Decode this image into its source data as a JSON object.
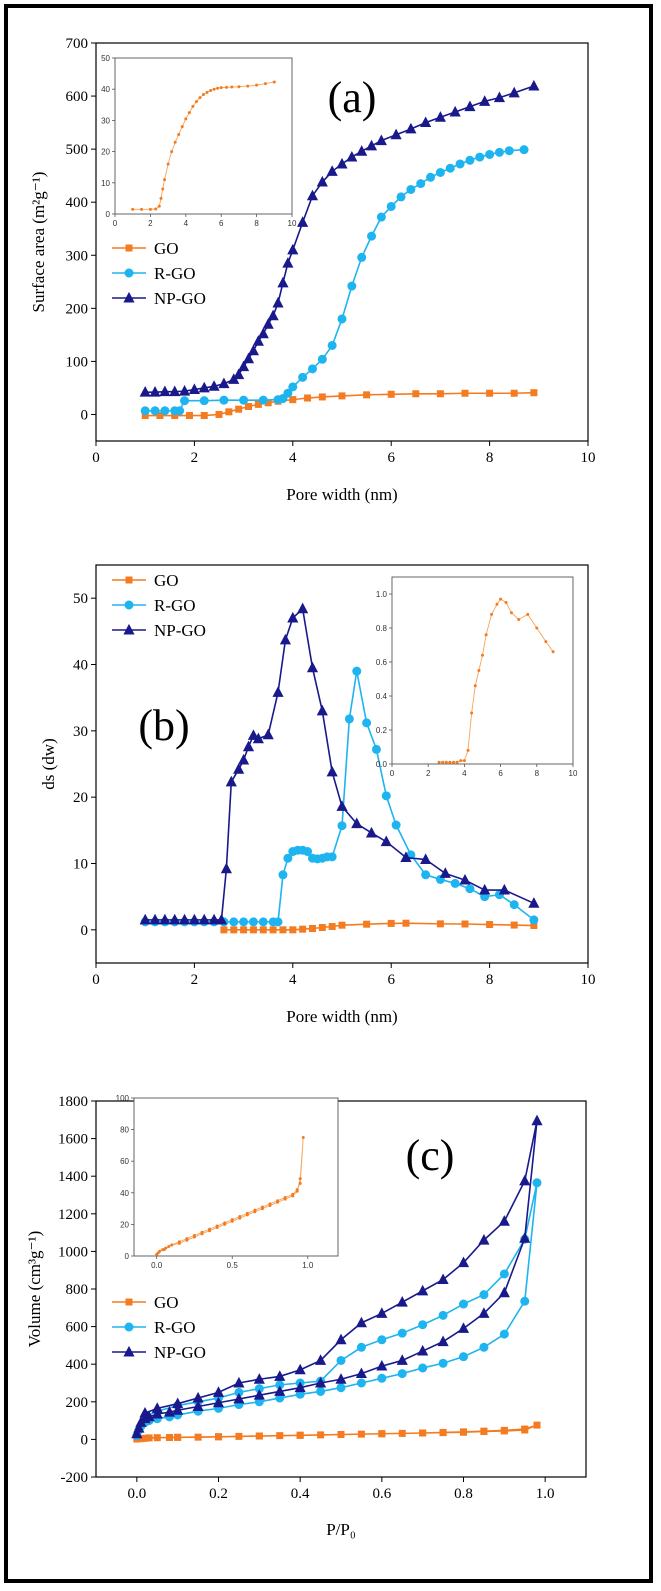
{
  "chart_data": [
    {
      "type": "line",
      "panel_label": "(a)",
      "xlabel": "Pore width (nm)",
      "ylabel": "Surface area (m²g⁻¹)",
      "xlim": [
        0,
        10
      ],
      "ylim": [
        -50,
        700
      ],
      "xticks": [
        0,
        2,
        4,
        6,
        8,
        10
      ],
      "yticks": [
        0,
        100,
        200,
        300,
        400,
        500,
        600,
        700
      ],
      "legend_position": "middle-left",
      "series": [
        {
          "name": "GO",
          "color": "#f47b20",
          "marker": "square",
          "x": [
            1.0,
            1.3,
            1.6,
            1.9,
            2.2,
            2.5,
            2.7,
            2.9,
            3.1,
            3.3,
            3.5,
            3.7,
            4.0,
            4.3,
            4.6,
            5.0,
            5.5,
            6.0,
            6.5,
            7.0,
            7.5,
            8.0,
            8.5,
            8.9
          ],
          "y": [
            -2,
            -2,
            -2,
            -2,
            -2,
            0,
            5,
            10,
            15,
            19,
            22,
            25,
            28,
            31,
            33,
            35,
            37,
            38,
            39,
            39,
            40,
            40,
            40,
            41
          ]
        },
        {
          "name": "R-GO",
          "color": "#1eb4f0",
          "marker": "circle",
          "x": [
            1.0,
            1.2,
            1.4,
            1.6,
            1.7,
            1.8,
            2.2,
            2.6,
            3.0,
            3.4,
            3.7,
            3.8,
            3.9,
            4.0,
            4.2,
            4.4,
            4.6,
            4.8,
            5.0,
            5.2,
            5.4,
            5.6,
            5.8,
            6.0,
            6.2,
            6.4,
            6.6,
            6.8,
            7.0,
            7.2,
            7.4,
            7.6,
            7.8,
            8.0,
            8.2,
            8.4,
            8.7
          ],
          "y": [
            7,
            7,
            7,
            7,
            7,
            26,
            26,
            27,
            27,
            27,
            28,
            30,
            40,
            52,
            70,
            86,
            104,
            130,
            180,
            242,
            296,
            336,
            372,
            392,
            410,
            424,
            435,
            447,
            456,
            464,
            472,
            479,
            485,
            490,
            494,
            497,
            499
          ]
        },
        {
          "name": "NP-GO",
          "color": "#19198c",
          "marker": "triangle",
          "x": [
            1.0,
            1.2,
            1.4,
            1.6,
            1.8,
            2.0,
            2.2,
            2.4,
            2.6,
            2.8,
            2.9,
            3.0,
            3.1,
            3.2,
            3.3,
            3.4,
            3.5,
            3.6,
            3.7,
            3.8,
            3.9,
            4.0,
            4.2,
            4.4,
            4.6,
            4.8,
            5.0,
            5.2,
            5.4,
            5.6,
            5.8,
            6.1,
            6.4,
            6.7,
            7.0,
            7.3,
            7.6,
            7.9,
            8.2,
            8.5,
            8.9
          ],
          "y": [
            42,
            42,
            43,
            43,
            44,
            47,
            50,
            53,
            58,
            66,
            75,
            90,
            105,
            120,
            138,
            152,
            170,
            186,
            210,
            248,
            285,
            310,
            362,
            412,
            438,
            458,
            472,
            485,
            496,
            506,
            516,
            527,
            538,
            550,
            560,
            570,
            580,
            590,
            597,
            606,
            619
          ]
        }
      ],
      "inset": {
        "series": "GO",
        "xlim": [
          0,
          10
        ],
        "ylim": [
          0,
          50
        ],
        "xticks": [
          0,
          2,
          4,
          6,
          8,
          10
        ],
        "yticks": [
          0,
          10,
          20,
          30,
          40,
          50
        ],
        "x": [
          1.0,
          1.5,
          2.0,
          2.3,
          2.5,
          2.6,
          2.7,
          2.8,
          3.0,
          3.2,
          3.4,
          3.6,
          3.8,
          4.0,
          4.2,
          4.4,
          4.6,
          4.8,
          5.0,
          5.2,
          5.4,
          5.6,
          5.8,
          6.0,
          6.3,
          6.6,
          7.0,
          7.5,
          8.0,
          8.5,
          9.0
        ],
        "y": [
          1.5,
          1.5,
          1.5,
          1.6,
          2.5,
          5,
          8,
          11,
          16,
          20,
          23,
          25.5,
          28,
          30.5,
          32.5,
          34.5,
          36,
          37.3,
          38.3,
          39,
          39.6,
          40,
          40.3,
          40.5,
          40.6,
          40.7,
          40.8,
          41,
          41.3,
          41.8,
          42.3
        ]
      }
    },
    {
      "type": "line",
      "panel_label": "(b)",
      "xlabel": "Pore width (nm)",
      "ylabel": "ds (dw)",
      "xlim": [
        0,
        10
      ],
      "ylim": [
        -5,
        55
      ],
      "xticks": [
        0,
        2,
        4,
        6,
        8,
        10
      ],
      "yticks": [
        0,
        10,
        20,
        30,
        40,
        50
      ],
      "legend_position": "top-left",
      "series": [
        {
          "name": "GO",
          "color": "#f47b20",
          "marker": "square",
          "x": [
            2.6,
            2.8,
            3.0,
            3.2,
            3.4,
            3.6,
            3.8,
            4.0,
            4.2,
            4.4,
            4.6,
            4.8,
            5.0,
            5.5,
            6.0,
            6.3,
            7.0,
            7.5,
            8.0,
            8.5,
            8.9
          ],
          "y": [
            0,
            0,
            0,
            0,
            0,
            0,
            0,
            0,
            0.1,
            0.2,
            0.35,
            0.5,
            0.7,
            0.85,
            0.97,
            1.0,
            0.9,
            0.88,
            0.8,
            0.72,
            0.65
          ]
        },
        {
          "name": "R-GO",
          "color": "#1eb4f0",
          "marker": "circle",
          "x": [
            1.0,
            1.2,
            1.4,
            1.6,
            1.8,
            2.0,
            2.2,
            2.4,
            2.6,
            2.8,
            3.0,
            3.2,
            3.4,
            3.6,
            3.7,
            3.8,
            3.9,
            4.0,
            4.1,
            4.2,
            4.3,
            4.4,
            4.5,
            4.6,
            4.7,
            4.8,
            5.0,
            5.15,
            5.3,
            5.5,
            5.7,
            5.9,
            6.1,
            6.4,
            6.7,
            7.0,
            7.3,
            7.6,
            7.9,
            8.2,
            8.5,
            8.9
          ],
          "y": [
            1.2,
            1.2,
            1.2,
            1.2,
            1.2,
            1.2,
            1.2,
            1.2,
            1.2,
            1.2,
            1.2,
            1.2,
            1.2,
            1.2,
            1.2,
            8.3,
            10.8,
            11.8,
            12,
            12,
            11.8,
            10.8,
            10.7,
            10.8,
            11,
            11,
            15.7,
            31.8,
            39,
            31.2,
            27.2,
            20.2,
            15.8,
            11.3,
            8.3,
            7.6,
            7.0,
            6.2,
            5.0,
            5.3,
            3.8,
            1.5
          ]
        },
        {
          "name": "NP-GO",
          "color": "#19198c",
          "marker": "triangle",
          "x": [
            1.0,
            1.2,
            1.4,
            1.6,
            1.8,
            2.0,
            2.2,
            2.4,
            2.55,
            2.65,
            2.75,
            2.9,
            3.0,
            3.1,
            3.2,
            3.3,
            3.5,
            3.7,
            3.85,
            4.0,
            4.2,
            4.4,
            4.6,
            4.8,
            5.0,
            5.3,
            5.6,
            5.9,
            6.3,
            6.7,
            7.1,
            7.5,
            7.9,
            8.3,
            8.9
          ],
          "y": [
            1.5,
            1.5,
            1.5,
            1.5,
            1.5,
            1.5,
            1.5,
            1.5,
            1.5,
            9.2,
            22.3,
            24.2,
            25.6,
            27.6,
            29.3,
            28.8,
            29.4,
            35.8,
            43.7,
            47,
            48.4,
            39.5,
            33,
            23.8,
            18.6,
            16,
            14.6,
            13.3,
            10.9,
            10.6,
            8.5,
            7.5,
            6.0,
            6.0,
            4.0
          ]
        }
      ],
      "inset": {
        "series": "GO",
        "xlim": [
          0,
          10
        ],
        "ylim": [
          0,
          1.1
        ],
        "xticks": [
          0,
          2,
          4,
          6,
          8,
          10
        ],
        "yticks": [
          0.0,
          0.2,
          0.4,
          0.6,
          0.8,
          1.0
        ],
        "tick_labels_y": [
          "0.0",
          "0.2",
          "0.4",
          "0.6",
          "0.8",
          "1.0"
        ],
        "x": [
          2.6,
          2.8,
          3.0,
          3.2,
          3.4,
          3.6,
          3.8,
          4.0,
          4.2,
          4.4,
          4.6,
          4.8,
          5.0,
          5.2,
          5.5,
          5.8,
          6.0,
          6.3,
          6.6,
          7.0,
          7.5,
          8.0,
          8.5,
          8.9
        ],
        "y": [
          0.01,
          0.01,
          0.01,
          0.01,
          0.01,
          0.01,
          0.02,
          0.02,
          0.08,
          0.3,
          0.46,
          0.55,
          0.64,
          0.76,
          0.88,
          0.94,
          0.97,
          0.95,
          0.89,
          0.85,
          0.88,
          0.8,
          0.72,
          0.66
        ]
      }
    },
    {
      "type": "line",
      "panel_label": "(c)",
      "xlabel": "P/P₀",
      "ylabel": "Volume (cm³g⁻¹)",
      "xlim": [
        -0.1,
        1.1
      ],
      "ylim": [
        -200,
        1800
      ],
      "xticks": [
        0.0,
        0.2,
        0.4,
        0.6,
        0.8,
        1.0
      ],
      "tick_labels_x": [
        "0.0",
        "0.2",
        "0.4",
        "0.6",
        "0.8",
        "1.0"
      ],
      "yticks": [
        -200,
        0,
        200,
        400,
        600,
        800,
        1000,
        1200,
        1400,
        1600,
        1800
      ],
      "legend_position": "middle-left",
      "series": [
        {
          "name": "GO",
          "color": "#f47b20",
          "marker": "square",
          "x": [
            0.0,
            0.01,
            0.02,
            0.03,
            0.05,
            0.08,
            0.1,
            0.15,
            0.2,
            0.25,
            0.3,
            0.35,
            0.4,
            0.45,
            0.5,
            0.55,
            0.6,
            0.65,
            0.7,
            0.75,
            0.8,
            0.85,
            0.9,
            0.95,
            0.98,
            0.95,
            0.9,
            0.85,
            0.8,
            0.75,
            0.7,
            0.6,
            0.5,
            0.4,
            0.3,
            0.2,
            0.1
          ],
          "y": [
            2,
            4,
            6,
            8,
            9,
            10,
            11,
            12,
            14,
            16,
            18,
            20,
            22,
            24,
            26,
            28,
            30,
            32,
            34,
            36,
            38,
            42,
            45,
            50,
            76,
            55,
            48,
            44,
            40,
            37,
            34,
            30,
            26,
            22,
            18,
            14,
            11
          ]
        },
        {
          "name": "R-GO",
          "color": "#1eb4f0",
          "marker": "circle",
          "x": [
            0.0,
            0.005,
            0.01,
            0.02,
            0.03,
            0.05,
            0.08,
            0.1,
            0.15,
            0.2,
            0.25,
            0.3,
            0.35,
            0.4,
            0.45,
            0.5,
            0.55,
            0.6,
            0.65,
            0.7,
            0.75,
            0.8,
            0.85,
            0.9,
            0.95,
            0.98,
            0.95,
            0.9,
            0.85,
            0.8,
            0.75,
            0.7,
            0.65,
            0.6,
            0.55,
            0.5,
            0.45,
            0.4,
            0.35,
            0.3,
            0.25,
            0.2,
            0.15,
            0.1,
            0.05,
            0.02
          ],
          "y": [
            20,
            50,
            70,
            90,
            100,
            110,
            120,
            130,
            150,
            165,
            185,
            200,
            220,
            240,
            255,
            275,
            300,
            325,
            350,
            380,
            405,
            440,
            490,
            560,
            735,
            1365,
            1065,
            880,
            770,
            720,
            660,
            610,
            565,
            530,
            490,
            420,
            310,
            300,
            290,
            270,
            250,
            220,
            200,
            180,
            150,
            120
          ]
        },
        {
          "name": "NP-GO",
          "color": "#19198c",
          "marker": "triangle",
          "x": [
            0.0,
            0.005,
            0.01,
            0.02,
            0.03,
            0.05,
            0.08,
            0.1,
            0.15,
            0.2,
            0.25,
            0.3,
            0.35,
            0.4,
            0.45,
            0.5,
            0.55,
            0.6,
            0.65,
            0.7,
            0.75,
            0.8,
            0.85,
            0.9,
            0.95,
            0.98,
            0.95,
            0.9,
            0.85,
            0.8,
            0.75,
            0.7,
            0.65,
            0.6,
            0.55,
            0.5,
            0.45,
            0.4,
            0.35,
            0.3,
            0.25,
            0.2,
            0.15,
            0.1,
            0.05,
            0.02
          ],
          "y": [
            30,
            60,
            90,
            110,
            120,
            135,
            145,
            155,
            175,
            195,
            215,
            235,
            255,
            275,
            300,
            320,
            350,
            390,
            420,
            470,
            520,
            590,
            670,
            780,
            1070,
            1695,
            1375,
            1160,
            1060,
            940,
            850,
            790,
            730,
            670,
            620,
            530,
            420,
            370,
            335,
            320,
            300,
            250,
            220,
            190,
            165,
            140
          ]
        }
      ],
      "inset": {
        "series": "GO",
        "xlim": [
          -0.15,
          1.2
        ],
        "ylim": [
          0,
          100
        ],
        "xticks": [
          0.0,
          0.5,
          1.0
        ],
        "yticks": [
          0,
          20,
          40,
          60,
          80,
          100
        ],
        "tick_labels_x": [
          "0.0",
          "0.5",
          "1.0"
        ],
        "x": [
          0.0,
          0.01,
          0.02,
          0.04,
          0.06,
          0.08,
          0.1,
          0.15,
          0.2,
          0.25,
          0.3,
          0.35,
          0.4,
          0.45,
          0.5,
          0.55,
          0.6,
          0.65,
          0.7,
          0.75,
          0.8,
          0.85,
          0.9,
          0.93,
          0.95,
          0.97,
          0.95,
          0.93,
          0.9,
          0.85,
          0.8,
          0.75,
          0.7,
          0.65,
          0.6,
          0.55,
          0.5,
          0.45,
          0.4,
          0.35,
          0.3,
          0.25,
          0.2,
          0.15,
          0.1,
          0.05
        ],
        "y": [
          1,
          2,
          3,
          4,
          5,
          6,
          7,
          8,
          10,
          12,
          14,
          16,
          18,
          20,
          22,
          24,
          26,
          28,
          30,
          32,
          34,
          36,
          38,
          41,
          49,
          75,
          46,
          42,
          39,
          37,
          35,
          33,
          31,
          29,
          27,
          25,
          23,
          21,
          19,
          17,
          15,
          13,
          11,
          9,
          7,
          4
        ]
      }
    }
  ]
}
